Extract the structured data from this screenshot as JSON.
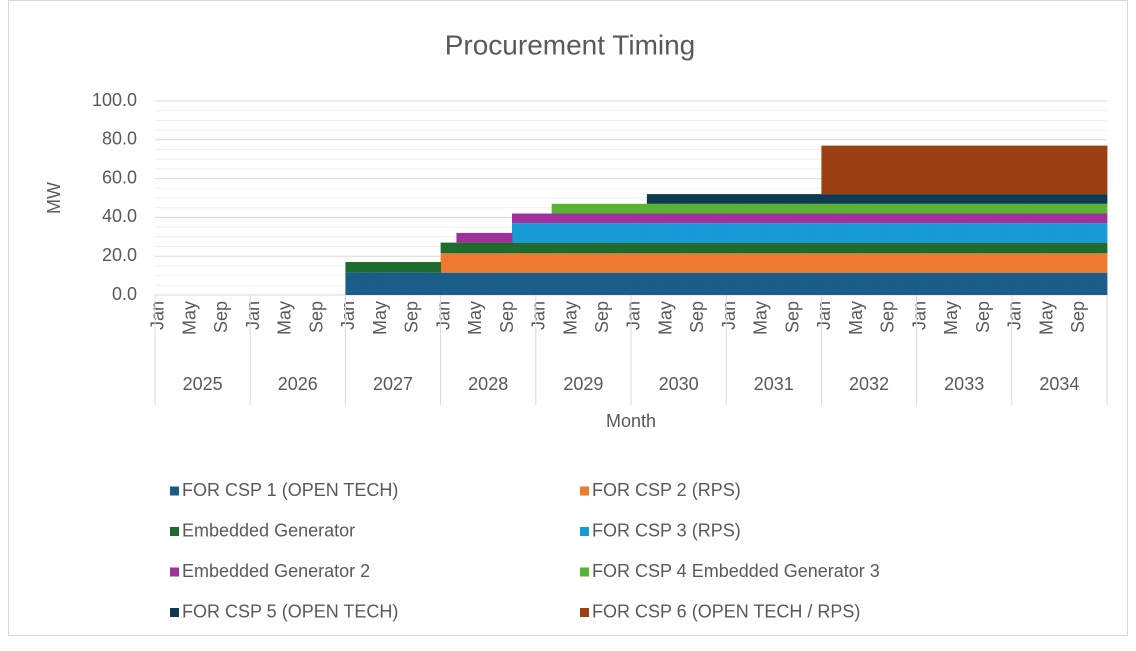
{
  "chart_data": {
    "type": "stacked_column",
    "title": "Procurement Timing",
    "y_label": "MW",
    "x_label": "Month",
    "categories": [
      "Jan",
      null,
      null,
      null,
      "May",
      null,
      null,
      null,
      "Sep",
      null,
      null,
      null,
      "Jan",
      null,
      null,
      null,
      "May",
      null,
      null,
      null,
      "Sep",
      null,
      null,
      null,
      "Jan",
      null,
      null,
      null,
      "May",
      null,
      null,
      null,
      "Sep",
      null,
      null,
      null,
      "Jan",
      null,
      null,
      null,
      "May",
      null,
      null,
      null,
      "Sep",
      null,
      null,
      null,
      "Jan",
      null,
      null,
      null,
      "May",
      null,
      null,
      null,
      "Sep",
      null,
      null,
      null,
      "Jan",
      null,
      null,
      null,
      "May",
      null,
      null,
      null,
      "Sep",
      null,
      null,
      null,
      "Jan",
      null,
      null,
      null,
      "May",
      null,
      null,
      null,
      "Sep",
      null,
      null,
      null,
      "Jan",
      null,
      null,
      null,
      "May",
      null,
      null,
      null,
      "Sep",
      null,
      null,
      null,
      "Jan",
      null,
      null,
      null,
      "May",
      null,
      null,
      null,
      "Sep",
      null,
      null,
      null,
      "Jan",
      null,
      null,
      null,
      "May",
      null,
      null,
      null,
      "Sep",
      null,
      null,
      null
    ],
    "category_groups": [
      "2025",
      "2026",
      "2027",
      "2028",
      "2029",
      "2030",
      "2031",
      "2032",
      "2033",
      "2034"
    ],
    "ylim": [
      0,
      100
    ],
    "yticks": [
      {
        "value": 0,
        "label": "0.0"
      },
      {
        "value": 20,
        "label": "20.0"
      },
      {
        "value": 40,
        "label": "40.0"
      },
      {
        "value": 60,
        "label": "60.0"
      },
      {
        "value": 80,
        "label": "80.0"
      },
      {
        "value": 100,
        "label": "100.0"
      }
    ],
    "minor_yticks": [
      5,
      10,
      15,
      25,
      30,
      35,
      45,
      50,
      55,
      65,
      70,
      75,
      85,
      90,
      95
    ],
    "grid": true,
    "legend": "bottom",
    "series": [
      {
        "name": "FOR CSP 1 (OPEN TECH)",
        "color": "#1a5d89",
        "values": [
          0,
          0,
          0,
          0,
          0,
          0,
          0,
          0,
          0,
          0,
          0,
          0,
          0,
          0,
          0,
          0,
          0,
          0,
          0,
          0,
          0,
          0,
          0,
          0,
          11.5,
          11.5,
          11.5,
          11.5,
          11.5,
          11.5,
          11.5,
          11.5,
          11.5,
          11.5,
          11.5,
          11.5,
          11.5,
          11.5,
          11.5,
          11.5,
          11.5,
          11.5,
          11.5,
          11.5,
          11.5,
          11.5,
          11.5,
          11.5,
          11.5,
          11.5,
          11.5,
          11.5,
          11.5,
          11.5,
          11.5,
          11.5,
          11.5,
          11.5,
          11.5,
          11.5,
          11.5,
          11.5,
          11.5,
          11.5,
          11.5,
          11.5,
          11.5,
          11.5,
          11.5,
          11.5,
          11.5,
          11.5,
          11.5,
          11.5,
          11.5,
          11.5,
          11.5,
          11.5,
          11.5,
          11.5,
          11.5,
          11.5,
          11.5,
          11.5,
          11.5,
          11.5,
          11.5,
          11.5,
          11.5,
          11.5,
          11.5,
          11.5,
          11.5,
          11.5,
          11.5,
          11.5,
          11.5,
          11.5,
          11.5,
          11.5,
          11.5,
          11.5,
          11.5,
          11.5,
          11.5,
          11.5,
          11.5,
          11.5,
          11.5,
          11.5,
          11.5,
          11.5,
          11.5,
          11.5,
          11.5,
          11.5,
          11.5,
          11.5,
          11.5,
          11.5
        ]
      },
      {
        "name": "FOR CSP 2 (RPS)",
        "color": "#ee7a30",
        "values": [
          0,
          0,
          0,
          0,
          0,
          0,
          0,
          0,
          0,
          0,
          0,
          0,
          0,
          0,
          0,
          0,
          0,
          0,
          0,
          0,
          0,
          0,
          0,
          0,
          0,
          0,
          0,
          0,
          0,
          0,
          0,
          0,
          0,
          0,
          0,
          0,
          10,
          10,
          10,
          10,
          10,
          10,
          10,
          10,
          10,
          10,
          10,
          10,
          10,
          10,
          10,
          10,
          10,
          10,
          10,
          10,
          10,
          10,
          10,
          10,
          10,
          10,
          10,
          10,
          10,
          10,
          10,
          10,
          10,
          10,
          10,
          10,
          10,
          10,
          10,
          10,
          10,
          10,
          10,
          10,
          10,
          10,
          10,
          10,
          10,
          10,
          10,
          10,
          10,
          10,
          10,
          10,
          10,
          10,
          10,
          10,
          10,
          10,
          10,
          10,
          10,
          10,
          10,
          10,
          10,
          10,
          10,
          10,
          10,
          10,
          10,
          10,
          10,
          10,
          10,
          10,
          10,
          10,
          10,
          10
        ]
      },
      {
        "name": "Embedded Generator",
        "color": "#1e6b30",
        "values": [
          0,
          0,
          0,
          0,
          0,
          0,
          0,
          0,
          0,
          0,
          0,
          0,
          0,
          0,
          0,
          0,
          0,
          0,
          0,
          0,
          0,
          0,
          0,
          0,
          5.5,
          5.5,
          5.5,
          5.5,
          5.5,
          5.5,
          5.5,
          5.5,
          5.5,
          5.5,
          5.5,
          5.5,
          5.5,
          5.5,
          5.5,
          5.5,
          5.5,
          5.5,
          5.5,
          5.5,
          5.5,
          5.5,
          5.5,
          5.5,
          5.5,
          5.5,
          5.5,
          5.5,
          5.5,
          5.5,
          5.5,
          5.5,
          5.5,
          5.5,
          5.5,
          5.5,
          5.5,
          5.5,
          5.5,
          5.5,
          5.5,
          5.5,
          5.5,
          5.5,
          5.5,
          5.5,
          5.5,
          5.5,
          5.5,
          5.5,
          5.5,
          5.5,
          5.5,
          5.5,
          5.5,
          5.5,
          5.5,
          5.5,
          5.5,
          5.5,
          5.5,
          5.5,
          5.5,
          5.5,
          5.5,
          5.5,
          5.5,
          5.5,
          5.5,
          5.5,
          5.5,
          5.5,
          5.5,
          5.5,
          5.5,
          5.5,
          5.5,
          5.5,
          5.5,
          5.5,
          5.5,
          5.5,
          5.5,
          5.5,
          5.5,
          5.5,
          5.5,
          5.5,
          5.5,
          5.5,
          5.5,
          5.5,
          5.5,
          5.5,
          5.5,
          5.5
        ]
      },
      {
        "name": "FOR CSP 3 (RPS)",
        "color": "#169bd7",
        "values": [
          0,
          0,
          0,
          0,
          0,
          0,
          0,
          0,
          0,
          0,
          0,
          0,
          0,
          0,
          0,
          0,
          0,
          0,
          0,
          0,
          0,
          0,
          0,
          0,
          0,
          0,
          0,
          0,
          0,
          0,
          0,
          0,
          0,
          0,
          0,
          0,
          0,
          0,
          0,
          0,
          0,
          0,
          0,
          0,
          0,
          10,
          10,
          10,
          10,
          10,
          10,
          10,
          10,
          10,
          10,
          10,
          10,
          10,
          10,
          10,
          10,
          10,
          10,
          10,
          10,
          10,
          10,
          10,
          10,
          10,
          10,
          10,
          10,
          10,
          10,
          10,
          10,
          10,
          10,
          10,
          10,
          10,
          10,
          10,
          10,
          10,
          10,
          10,
          10,
          10,
          10,
          10,
          10,
          10,
          10,
          10,
          10,
          10,
          10,
          10,
          10,
          10,
          10,
          10,
          10,
          10,
          10,
          10,
          10,
          10,
          10,
          10,
          10,
          10,
          10,
          10,
          10,
          10,
          10,
          10
        ]
      },
      {
        "name": "Embedded Generator 2",
        "color": "#a0309b",
        "values": [
          0,
          0,
          0,
          0,
          0,
          0,
          0,
          0,
          0,
          0,
          0,
          0,
          0,
          0,
          0,
          0,
          0,
          0,
          0,
          0,
          0,
          0,
          0,
          0,
          0,
          0,
          0,
          0,
          0,
          0,
          0,
          0,
          0,
          0,
          0,
          0,
          0,
          0,
          5,
          5,
          5,
          5,
          5,
          5,
          5,
          5,
          5,
          5,
          5,
          5,
          5,
          5,
          5,
          5,
          5,
          5,
          5,
          5,
          5,
          5,
          5,
          5,
          5,
          5,
          5,
          5,
          5,
          5,
          5,
          5,
          5,
          5,
          5,
          5,
          5,
          5,
          5,
          5,
          5,
          5,
          5,
          5,
          5,
          5,
          5,
          5,
          5,
          5,
          5,
          5,
          5,
          5,
          5,
          5,
          5,
          5,
          5,
          5,
          5,
          5,
          5,
          5,
          5,
          5,
          5,
          5,
          5,
          5,
          5,
          5,
          5,
          5,
          5,
          5,
          5,
          5,
          5,
          5,
          5,
          5
        ]
      },
      {
        "name": "FOR CSP 4 Embedded Generator 3",
        "color": "#58b335",
        "values": [
          0,
          0,
          0,
          0,
          0,
          0,
          0,
          0,
          0,
          0,
          0,
          0,
          0,
          0,
          0,
          0,
          0,
          0,
          0,
          0,
          0,
          0,
          0,
          0,
          0,
          0,
          0,
          0,
          0,
          0,
          0,
          0,
          0,
          0,
          0,
          0,
          0,
          0,
          0,
          0,
          0,
          0,
          0,
          0,
          0,
          0,
          0,
          0,
          0,
          0,
          5,
          5,
          5,
          5,
          5,
          5,
          5,
          5,
          5,
          5,
          5,
          5,
          5,
          5,
          5,
          5,
          5,
          5,
          5,
          5,
          5,
          5,
          5,
          5,
          5,
          5,
          5,
          5,
          5,
          5,
          5,
          5,
          5,
          5,
          5,
          5,
          5,
          5,
          5,
          5,
          5,
          5,
          5,
          5,
          5,
          5,
          5,
          5,
          5,
          5,
          5,
          5,
          5,
          5,
          5,
          5,
          5,
          5,
          5,
          5,
          5,
          5,
          5,
          5,
          5,
          5,
          5,
          5,
          5,
          5
        ]
      },
      {
        "name": "FOR CSP 5 (OPEN TECH)",
        "color": "#0f3a52",
        "values": [
          0,
          0,
          0,
          0,
          0,
          0,
          0,
          0,
          0,
          0,
          0,
          0,
          0,
          0,
          0,
          0,
          0,
          0,
          0,
          0,
          0,
          0,
          0,
          0,
          0,
          0,
          0,
          0,
          0,
          0,
          0,
          0,
          0,
          0,
          0,
          0,
          0,
          0,
          0,
          0,
          0,
          0,
          0,
          0,
          0,
          0,
          0,
          0,
          0,
          0,
          0,
          0,
          0,
          0,
          0,
          0,
          0,
          0,
          0,
          0,
          0,
          0,
          5,
          5,
          5,
          5,
          5,
          5,
          5,
          5,
          5,
          5,
          5,
          5,
          5,
          5,
          5,
          5,
          5,
          5,
          5,
          5,
          5,
          5,
          5,
          5,
          5,
          5,
          5,
          5,
          5,
          5,
          5,
          5,
          5,
          5,
          5,
          5,
          5,
          5,
          5,
          5,
          5,
          5,
          5,
          5,
          5,
          5,
          5,
          5,
          5,
          5,
          5,
          5,
          5,
          5,
          5,
          5,
          5,
          5
        ]
      },
      {
        "name": "FOR CSP 6 (OPEN TECH / RPS)",
        "color": "#9c3f12",
        "values": [
          0,
          0,
          0,
          0,
          0,
          0,
          0,
          0,
          0,
          0,
          0,
          0,
          0,
          0,
          0,
          0,
          0,
          0,
          0,
          0,
          0,
          0,
          0,
          0,
          0,
          0,
          0,
          0,
          0,
          0,
          0,
          0,
          0,
          0,
          0,
          0,
          0,
          0,
          0,
          0,
          0,
          0,
          0,
          0,
          0,
          0,
          0,
          0,
          0,
          0,
          0,
          0,
          0,
          0,
          0,
          0,
          0,
          0,
          0,
          0,
          0,
          0,
          0,
          0,
          0,
          0,
          0,
          0,
          0,
          0,
          0,
          0,
          0,
          0,
          0,
          0,
          0,
          0,
          0,
          0,
          0,
          0,
          0,
          0,
          25,
          25,
          25,
          25,
          25,
          25,
          25,
          25,
          25,
          25,
          25,
          25,
          25,
          25,
          25,
          25,
          25,
          25,
          25,
          25,
          25,
          25,
          25,
          25,
          25,
          25,
          25,
          25,
          25,
          25,
          25,
          25,
          25,
          25,
          25,
          25
        ]
      }
    ]
  }
}
